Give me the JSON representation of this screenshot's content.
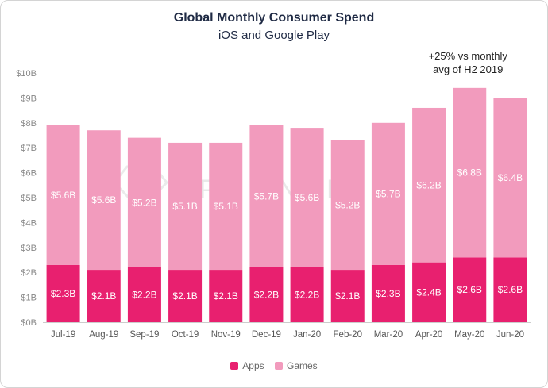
{
  "chart_data": {
    "type": "bar",
    "stacked": true,
    "title": "Global Monthly Consumer Spend",
    "subtitle": "iOS and Google Play",
    "categories": [
      "Jul-19",
      "Aug-19",
      "Sep-19",
      "Oct-19",
      "Nov-19",
      "Dec-19",
      "Jan-20",
      "Feb-20",
      "Mar-20",
      "Apr-20",
      "May-20",
      "Jun-20"
    ],
    "series": [
      {
        "name": "Apps",
        "color": "#e8206f",
        "values": [
          2.3,
          2.1,
          2.2,
          2.1,
          2.1,
          2.2,
          2.2,
          2.1,
          2.3,
          2.4,
          2.6,
          2.6
        ],
        "labels": [
          "$2.3B",
          "$2.1B",
          "$2.2B",
          "$2.1B",
          "$2.1B",
          "$2.2B",
          "$2.2B",
          "$2.1B",
          "$2.3B",
          "$2.4B",
          "$2.6B",
          "$2.6B"
        ]
      },
      {
        "name": "Games",
        "color": "#f29bbd",
        "values": [
          5.6,
          5.6,
          5.2,
          5.1,
          5.1,
          5.7,
          5.6,
          5.2,
          5.7,
          6.2,
          6.8,
          6.4
        ],
        "labels": [
          "$5.6B",
          "$5.6B",
          "$5.2B",
          "$5.1B",
          "$5.1B",
          "$5.7B",
          "$5.6B",
          "$5.2B",
          "$5.7B",
          "$6.2B",
          "$6.8B",
          "$6.4B"
        ]
      }
    ],
    "yticks": [
      "$0B",
      "$1B",
      "$2B",
      "$3B",
      "$4B",
      "$5B",
      "$6B",
      "$7B",
      "$8B",
      "$9B",
      "$10B"
    ],
    "ylim": [
      0,
      10
    ],
    "grid": false,
    "legend": "bottom-center",
    "annotation": {
      "lines": [
        "+25% vs monthly",
        "avg of H2 2019"
      ],
      "category": "May-20"
    },
    "watermark": "APP ANNIE"
  }
}
